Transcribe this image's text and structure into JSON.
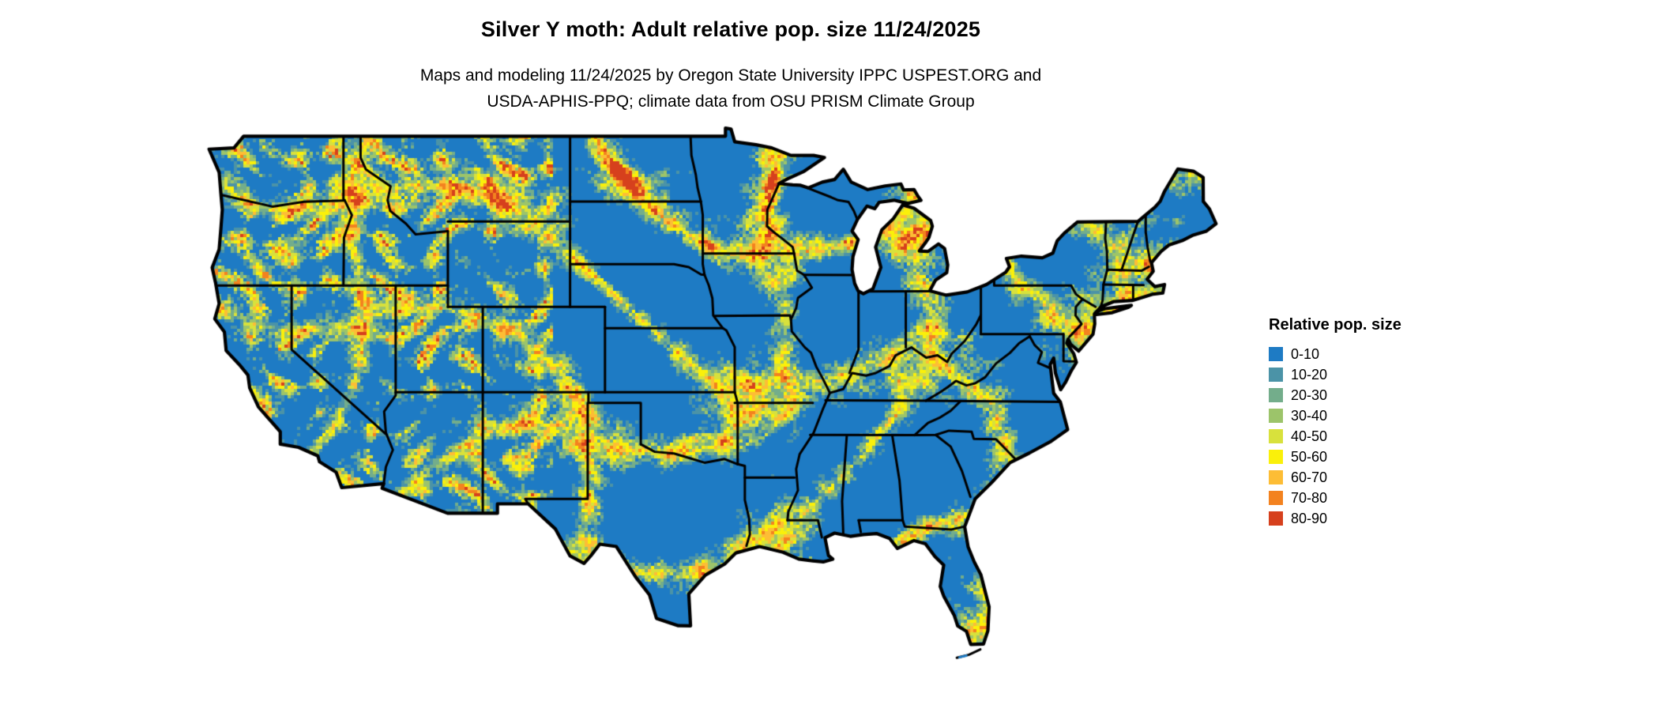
{
  "title": "Silver Y moth: Adult relative pop. size 11/24/2025",
  "subtitle_line1": "Maps and modeling 11/24/2025 by Oregon State University IPPC USPEST.ORG and",
  "subtitle_line2": "USDA-APHIS-PPQ; climate data from OSU PRISM Climate Group",
  "map": {
    "region": "Continental United States",
    "base_color": "#1e7bc4",
    "border_color": "#000000",
    "background_color": "#ffffff"
  },
  "legend": {
    "title": "Relative pop. size",
    "items": [
      {
        "label": "0-10",
        "color": "#1e7bc4"
      },
      {
        "label": "10-20",
        "color": "#4b93a7"
      },
      {
        "label": "20-30",
        "color": "#73ad8b"
      },
      {
        "label": "30-40",
        "color": "#9cc46a"
      },
      {
        "label": "40-50",
        "color": "#d8e13c"
      },
      {
        "label": "50-60",
        "color": "#faf00a"
      },
      {
        "label": "60-70",
        "color": "#fdbd35"
      },
      {
        "label": "70-80",
        "color": "#f3821f"
      },
      {
        "label": "80-90",
        "color": "#d6401d"
      }
    ]
  }
}
